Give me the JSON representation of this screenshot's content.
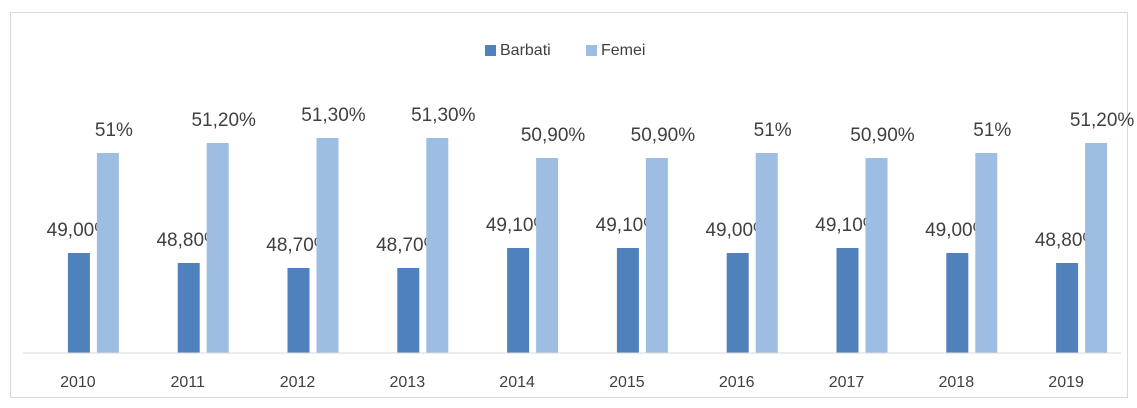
{
  "chart_data": {
    "type": "bar",
    "categories": [
      "2010",
      "2011",
      "2012",
      "2013",
      "2014",
      "2015",
      "2016",
      "2017",
      "2018",
      "2019"
    ],
    "series": [
      {
        "name": "Barbati",
        "color": "#4f81bd",
        "values": [
          49.0,
          48.8,
          48.7,
          48.7,
          49.1,
          49.1,
          49.0,
          49.1,
          49.0,
          48.8
        ],
        "value_labels": [
          "49,00%",
          "48,80%",
          "48,70%",
          "48,70%",
          "49,10%",
          "49,10%",
          "49,00%",
          "49,10%",
          "49,00%",
          "48,80%"
        ]
      },
      {
        "name": "Femei",
        "color": "#9dbde3",
        "values": [
          51,
          51.2,
          51.3,
          51.3,
          50.9,
          50.9,
          51,
          50.9,
          51,
          51.2
        ],
        "value_labels": [
          "51%",
          "51,20%",
          "51,30%",
          "51,30%",
          "50,90%",
          "50,90%",
          "51%",
          "50,90%",
          "51%",
          "51,20%"
        ]
      }
    ],
    "ylim": [
      47,
      52
    ],
    "legend": "top"
  }
}
